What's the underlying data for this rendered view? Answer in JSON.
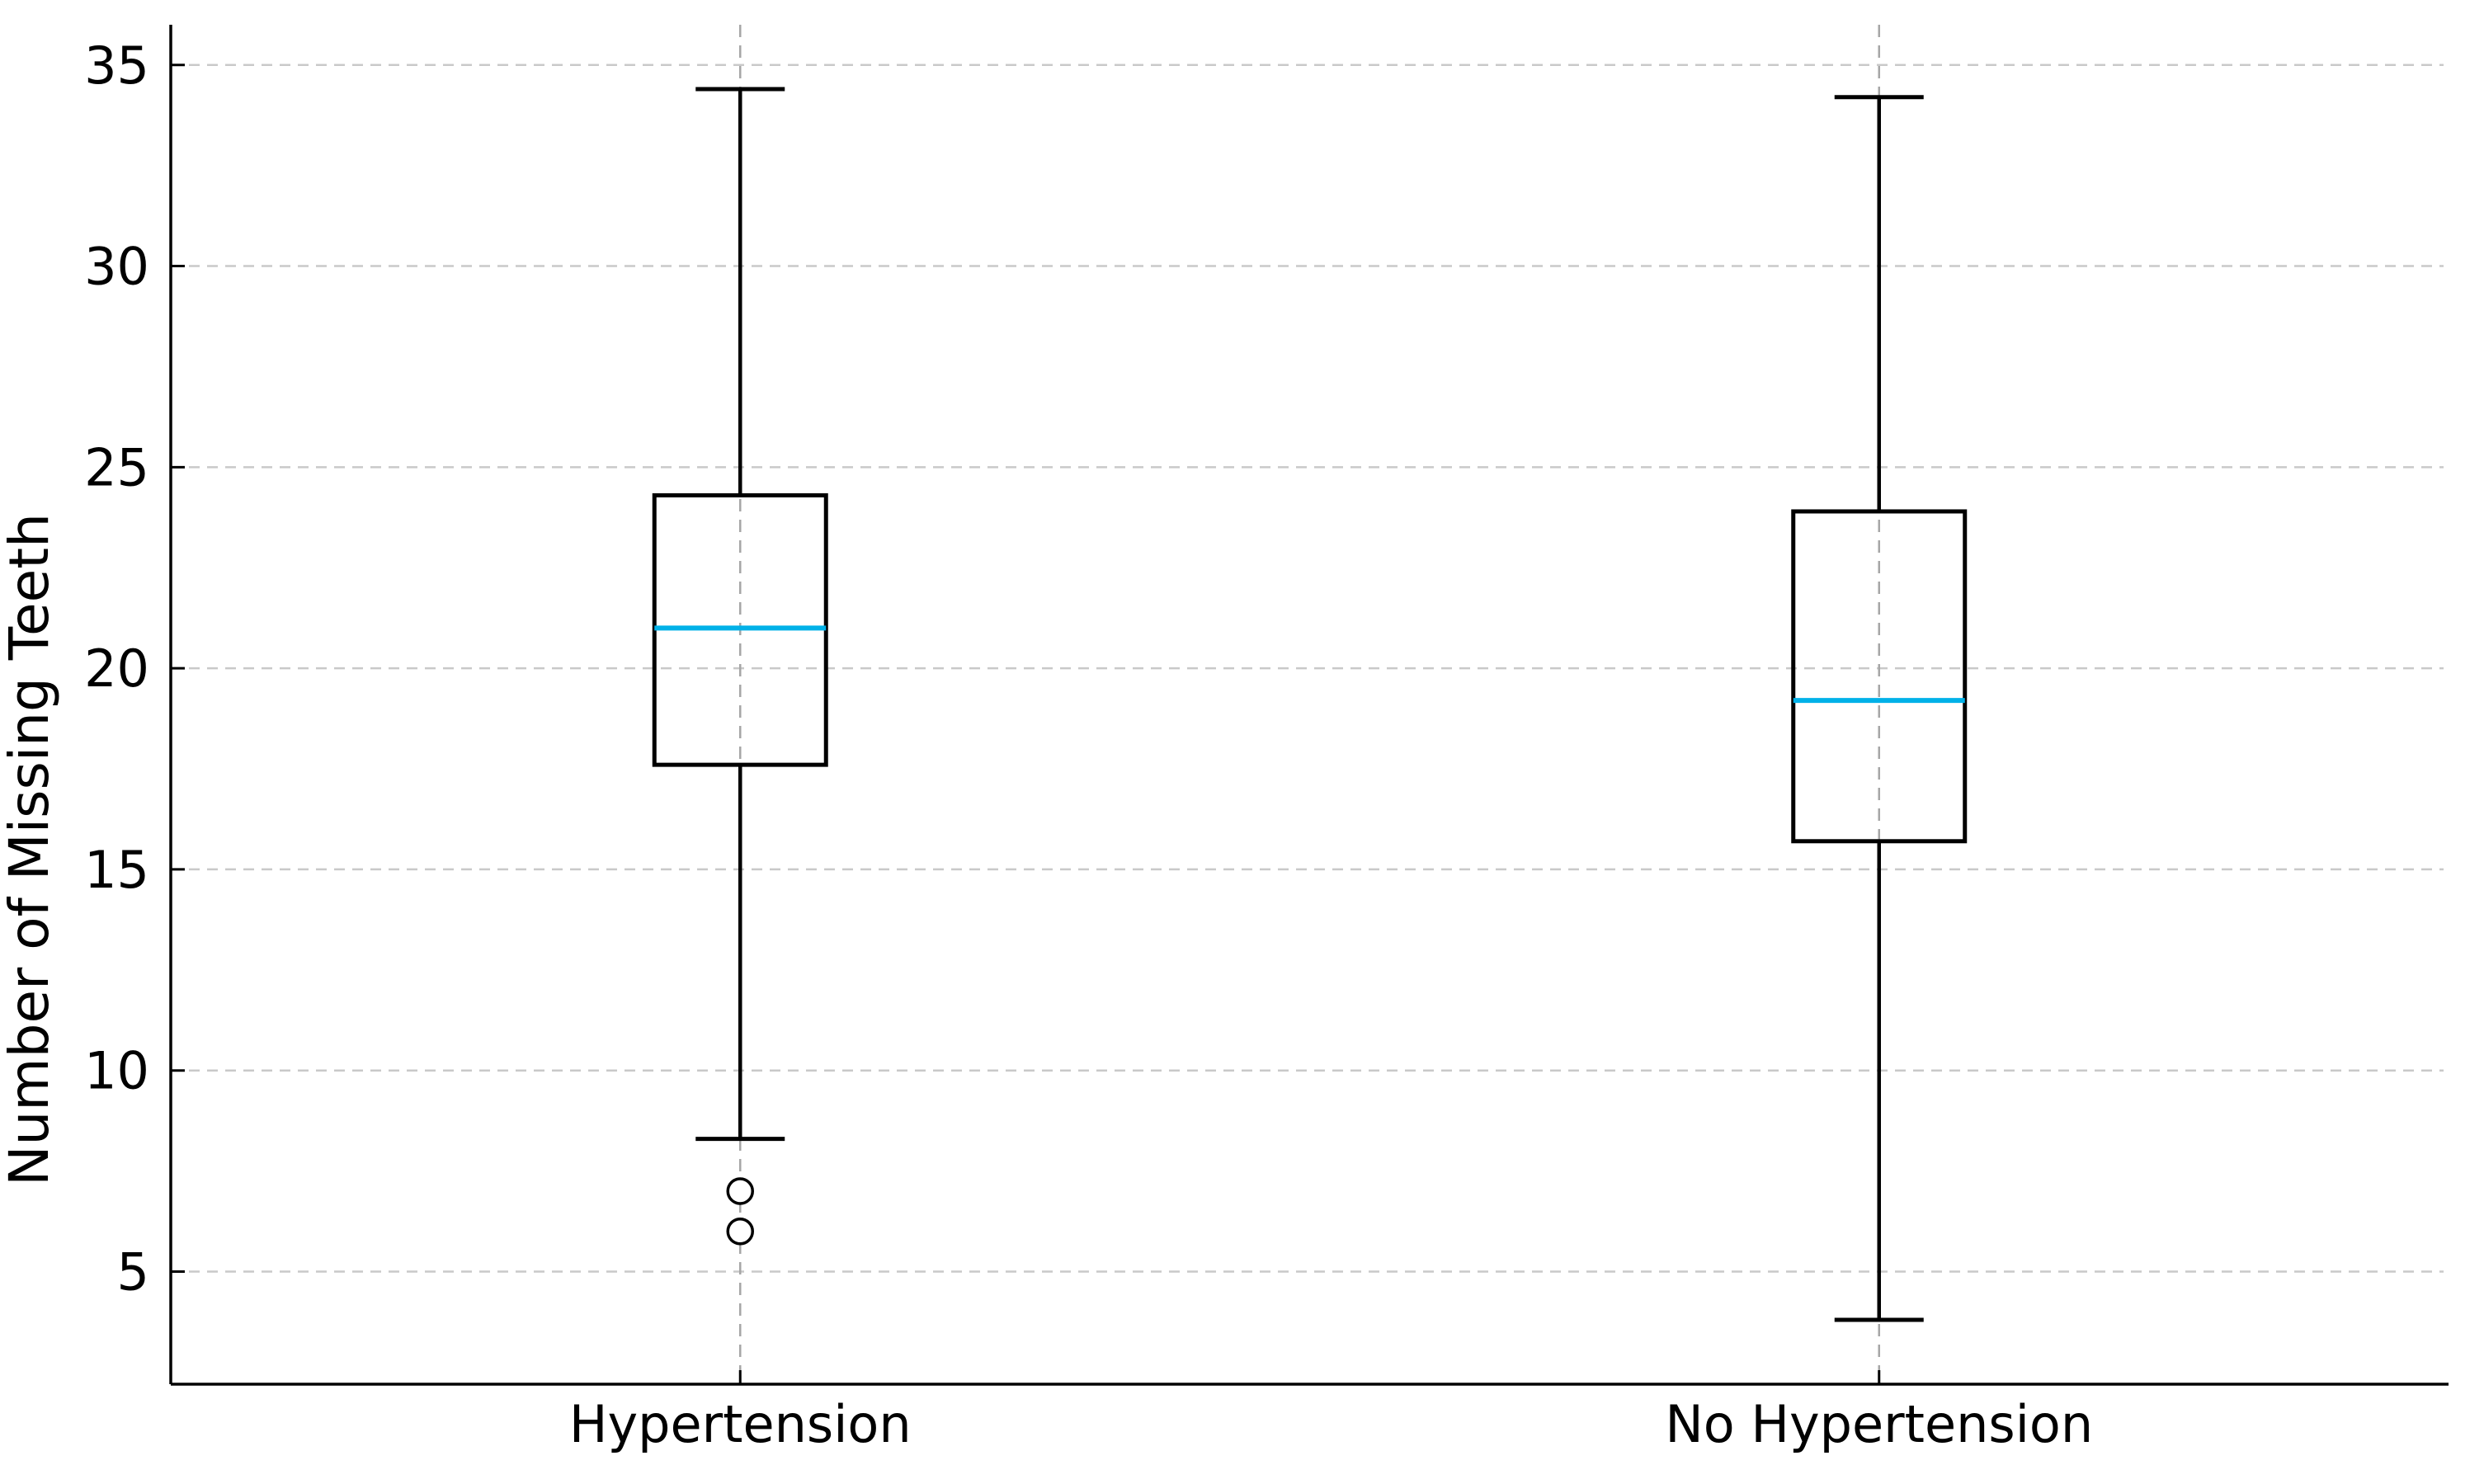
{
  "figure": {
    "background": "#ffffff"
  },
  "chart_data": {
    "type": "boxplot",
    "ylabel": "Number of Missing Teeth",
    "xlabel": "",
    "categories": [
      "Hypertension",
      "No Hypertension"
    ],
    "series": [
      {
        "name": "Hypertension",
        "whisker_low": 8.3,
        "q1": 17.6,
        "median": 21.0,
        "q3": 24.3,
        "whisker_high": 34.4,
        "outliers": [
          7,
          6
        ]
      },
      {
        "name": "No Hypertension",
        "whisker_low": 3.8,
        "q1": 15.7,
        "median": 19.2,
        "q3": 23.9,
        "whisker_high": 34.2,
        "outliers": []
      }
    ],
    "yticks": [
      5,
      10,
      15,
      20,
      25,
      30,
      35
    ],
    "ylim": [
      2.2,
      36.0
    ],
    "grid": {
      "horizontal": true,
      "vertical": true,
      "style": "dashed"
    },
    "legend_position": "none",
    "colors": {
      "box": "#000000",
      "whisker": "#000000",
      "cap": "#000000",
      "median": "#00b1e8",
      "outlier_edge": "#000000",
      "outlier_face": "#ffffff",
      "grid_h": "#c9c9c9",
      "grid_v": "#a6a6a6",
      "spine": "#000000",
      "tick": "#000000",
      "text": "#000000"
    }
  }
}
